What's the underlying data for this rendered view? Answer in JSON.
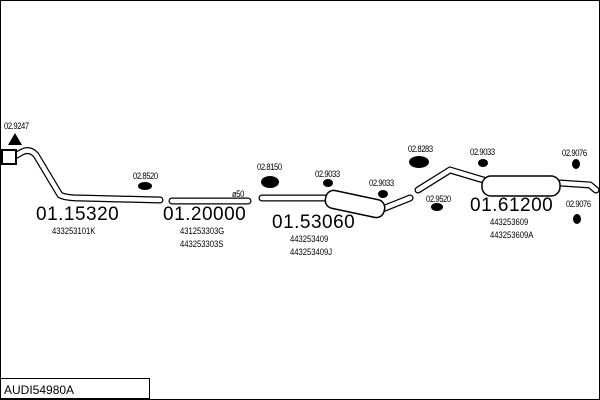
{
  "model_code": "AUDI54980A",
  "parts": [
    {
      "number": "01.15320",
      "refs": [
        "433253101K"
      ]
    },
    {
      "number": "01.20000",
      "refs": [
        "431253303G",
        "443253303S"
      ]
    },
    {
      "number": "01.53060",
      "refs": [
        "443253409",
        "443253409J"
      ]
    },
    {
      "number": "01.61200",
      "refs": [
        "443253609",
        "443253609A"
      ]
    }
  ],
  "accessories": [
    "02.9247",
    "02.8520",
    "02.8150",
    "02.9033",
    "02.9033",
    "02.8283",
    "02.9520",
    "02.9033",
    "02.9076",
    "02.9076"
  ],
  "pipe_diameter_label": "ø50"
}
